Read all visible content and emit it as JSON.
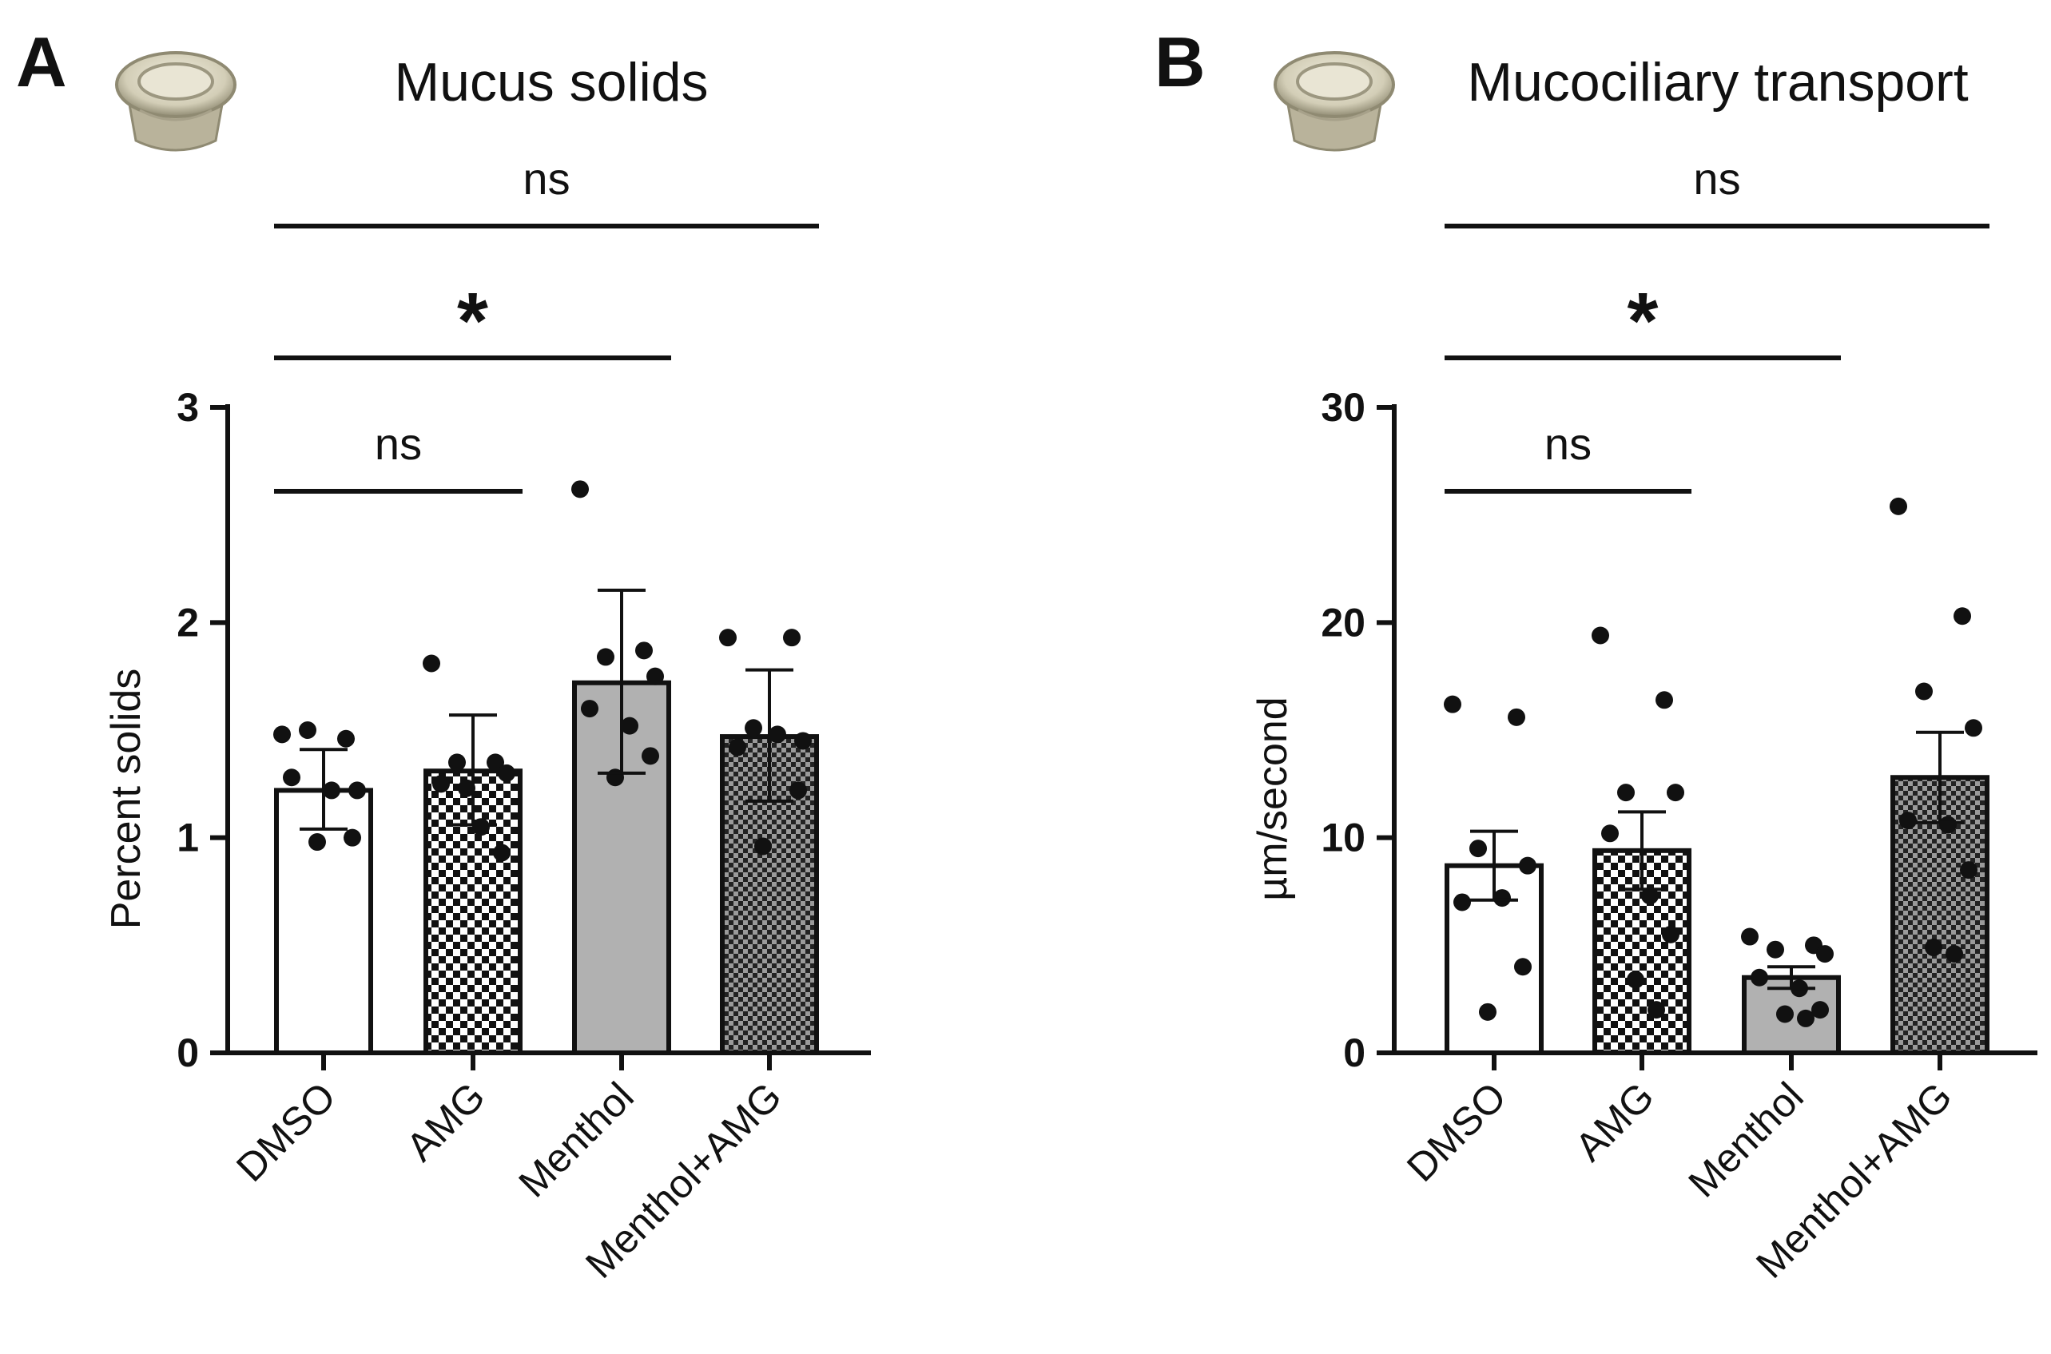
{
  "chart_data": [
    {
      "panel_letter": "A",
      "type": "bar",
      "title": "Mucus solids",
      "ylabel": "Percent solids",
      "ylim": [
        0,
        3
      ],
      "yticks": [
        "0",
        "1",
        "2",
        "3"
      ],
      "categories": [
        "DMSO",
        "AMG",
        "Menthol",
        "Menthol+AMG"
      ],
      "values": [
        1.22,
        1.31,
        1.72,
        1.47
      ],
      "error_upper": [
        1.41,
        1.57,
        2.15,
        1.78
      ],
      "error_lower": [
        1.04,
        1.06,
        1.3,
        1.17
      ],
      "bar_fill": [
        "white",
        "checker-fine",
        "gray",
        "checker-dense"
      ],
      "points": [
        [
          1.48,
          1.46,
          1.5,
          1.22,
          1.28,
          1.22,
          1.0,
          0.98
        ],
        [
          1.81,
          1.35,
          1.35,
          1.3,
          1.25,
          1.05,
          0.93,
          1.23
        ],
        [
          2.62,
          1.87,
          1.84,
          1.75,
          1.6,
          1.52,
          1.38,
          1.28
        ],
        [
          1.93,
          1.93,
          1.51,
          1.45,
          1.42,
          1.48,
          1.22,
          0.96
        ]
      ],
      "significance": [
        {
          "from": "DMSO",
          "to": "Menthol+AMG",
          "label": "ns",
          "level": 3.8
        },
        {
          "from": "DMSO",
          "to": "Menthol",
          "label": "*",
          "level": 3.2
        },
        {
          "from": "DMSO",
          "to": "AMG",
          "label": "ns",
          "level": 2.6
        }
      ]
    },
    {
      "panel_letter": "B",
      "type": "bar",
      "title": "Mucociliary transport",
      "ylabel": "µm/second",
      "ylim": [
        0,
        30
      ],
      "yticks": [
        "0",
        "10",
        "20",
        "30"
      ],
      "categories": [
        "DMSO",
        "AMG",
        "Menthol",
        "Menthol+AMG"
      ],
      "values": [
        8.7,
        9.4,
        3.5,
        12.8
      ],
      "error_upper": [
        10.3,
        11.2,
        4.0,
        14.9
      ],
      "error_lower": [
        7.1,
        7.6,
        3.0,
        10.7
      ],
      "bar_fill": [
        "white",
        "checker-fine",
        "gray",
        "checker-dense"
      ],
      "points": [
        [
          16.2,
          15.6,
          9.5,
          8.7,
          7.0,
          7.2,
          4.0,
          1.9
        ],
        [
          19.4,
          16.4,
          12.1,
          12.1,
          10.2,
          7.3,
          5.5,
          3.4,
          2.0
        ],
        [
          5.4,
          5.0,
          4.8,
          4.6,
          3.5,
          3.0,
          2.0,
          1.8,
          1.6
        ],
        [
          25.4,
          20.3,
          16.8,
          15.1,
          10.8,
          10.6,
          8.5,
          4.9,
          4.6
        ]
      ],
      "significance": [
        {
          "from": "DMSO",
          "to": "Menthol+AMG",
          "label": "ns",
          "level": 38
        },
        {
          "from": "DMSO",
          "to": "Menthol",
          "label": "*",
          "level": 32
        },
        {
          "from": "DMSO",
          "to": "AMG",
          "label": "ns",
          "level": 26
        }
      ]
    }
  ],
  "colors": {
    "axis": "#111111",
    "bar_gray": "#b1b1b1",
    "checker_dark": "#111111",
    "checker_light": "#ffffff",
    "dense_checker_light": "#9a9a9a",
    "point": "#111111",
    "insert_body": "#d8d3c0",
    "insert_shadow": "#8f8a72"
  },
  "icons": [
    "cell-culture-insert-icon",
    "cell-culture-insert-icon"
  ]
}
